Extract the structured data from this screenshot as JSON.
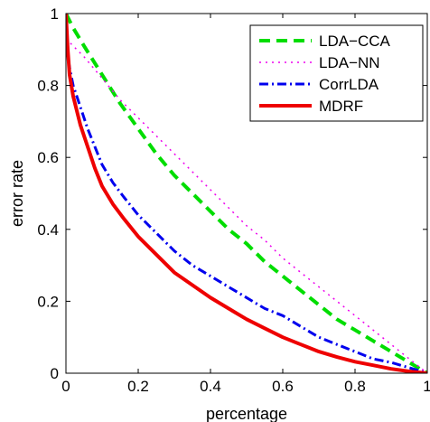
{
  "chart_data": {
    "type": "line",
    "title": "",
    "xlabel": "percentage",
    "ylabel": "error rate",
    "xlim": [
      0,
      1
    ],
    "ylim": [
      0,
      1
    ],
    "xticks": [
      0,
      0.2,
      0.4,
      0.6,
      0.8,
      1
    ],
    "xtick_labels": [
      "0",
      "0.2",
      "0.4",
      "0.6",
      "0.8",
      "1"
    ],
    "yticks": [
      0,
      0.2,
      0.4,
      0.6,
      0.8,
      1
    ],
    "ytick_labels": [
      "0",
      "0.2",
      "0.4",
      "0.6",
      "0.8",
      "1"
    ],
    "grid": false,
    "legend_position": "top-right",
    "series": [
      {
        "name": "LDA−CCA",
        "color": "#00dd00",
        "dash": "dashed",
        "x": [
          0,
          0.02,
          0.05,
          0.1,
          0.15,
          0.2,
          0.25,
          0.3,
          0.35,
          0.4,
          0.45,
          0.5,
          0.55,
          0.6,
          0.65,
          0.7,
          0.75,
          0.8,
          0.85,
          0.9,
          0.95,
          1.0
        ],
        "y": [
          1.0,
          0.96,
          0.91,
          0.83,
          0.75,
          0.68,
          0.61,
          0.55,
          0.5,
          0.45,
          0.4,
          0.36,
          0.31,
          0.27,
          0.23,
          0.19,
          0.15,
          0.12,
          0.09,
          0.06,
          0.03,
          0.0
        ]
      },
      {
        "name": "LDA−NN",
        "color": "#ee00ee",
        "dash": "dotted",
        "x": [
          0,
          0.05,
          0.1,
          0.15,
          0.2,
          0.25,
          0.3,
          0.35,
          0.4,
          0.45,
          0.5,
          0.55,
          0.6,
          0.65,
          0.7,
          0.75,
          0.8,
          0.85,
          0.9,
          0.95,
          1.0
        ],
        "y": [
          0.93,
          0.88,
          0.82,
          0.76,
          0.71,
          0.66,
          0.61,
          0.56,
          0.51,
          0.46,
          0.41,
          0.37,
          0.32,
          0.28,
          0.24,
          0.2,
          0.16,
          0.12,
          0.08,
          0.04,
          0.0
        ]
      },
      {
        "name": "CorrLDA",
        "color": "#0000ee",
        "dash": "dashdot",
        "x": [
          0,
          0.01,
          0.02,
          0.04,
          0.06,
          0.08,
          0.1,
          0.13,
          0.16,
          0.2,
          0.25,
          0.3,
          0.35,
          0.4,
          0.45,
          0.5,
          0.55,
          0.6,
          0.65,
          0.7,
          0.75,
          0.8,
          0.85,
          0.9,
          0.95,
          1.0
        ],
        "y": [
          0.92,
          0.85,
          0.8,
          0.74,
          0.68,
          0.63,
          0.58,
          0.53,
          0.49,
          0.44,
          0.39,
          0.34,
          0.3,
          0.27,
          0.24,
          0.21,
          0.18,
          0.16,
          0.13,
          0.1,
          0.08,
          0.06,
          0.04,
          0.03,
          0.015,
          0.0
        ]
      },
      {
        "name": "MDRF",
        "color": "#ee0000",
        "dash": "solid",
        "x": [
          0,
          0.005,
          0.01,
          0.02,
          0.04,
          0.06,
          0.08,
          0.1,
          0.13,
          0.16,
          0.2,
          0.25,
          0.3,
          0.35,
          0.4,
          0.45,
          0.5,
          0.55,
          0.6,
          0.65,
          0.7,
          0.75,
          0.8,
          0.85,
          0.9,
          0.95,
          1.0
        ],
        "y": [
          1.0,
          0.9,
          0.83,
          0.77,
          0.69,
          0.63,
          0.57,
          0.52,
          0.47,
          0.43,
          0.38,
          0.33,
          0.28,
          0.245,
          0.21,
          0.18,
          0.15,
          0.125,
          0.1,
          0.08,
          0.06,
          0.045,
          0.032,
          0.022,
          0.012,
          0.005,
          0.0
        ]
      }
    ]
  }
}
